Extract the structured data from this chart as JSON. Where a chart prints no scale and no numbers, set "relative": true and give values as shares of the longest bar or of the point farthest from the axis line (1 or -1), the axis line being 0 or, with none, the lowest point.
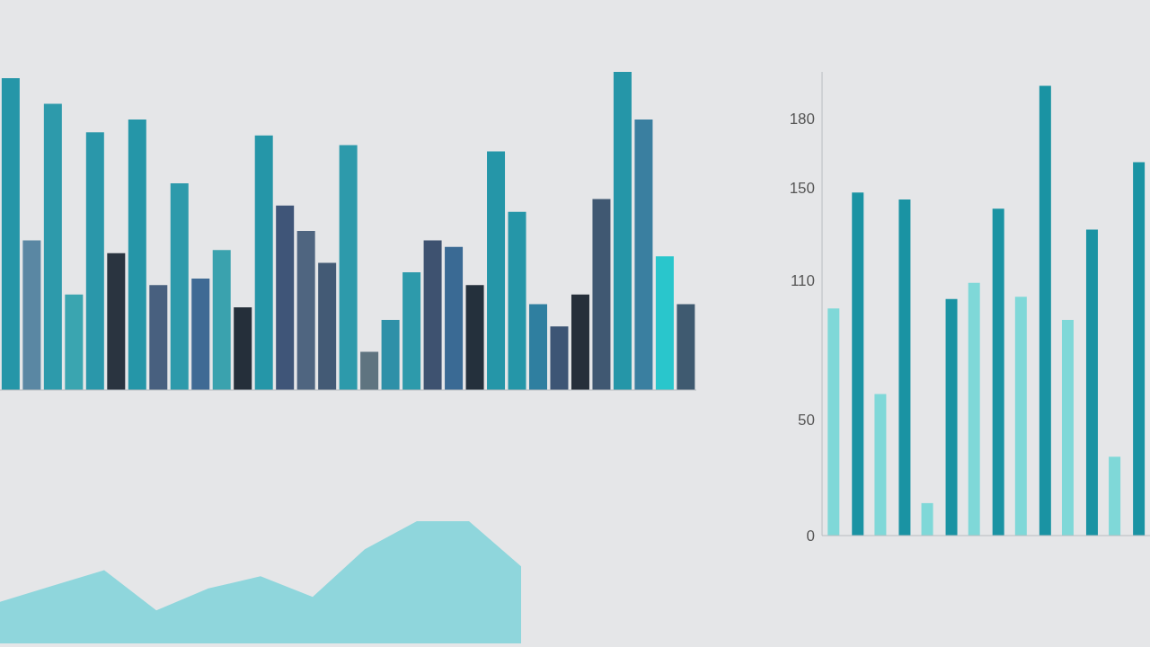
{
  "chart_data": [
    {
      "type": "bar",
      "relative": true,
      "categories": [
        null,
        null,
        null,
        null,
        null,
        null,
        null,
        null,
        null,
        null,
        null,
        null,
        null,
        null,
        null,
        null,
        null,
        null,
        null,
        null,
        null,
        null,
        null,
        null,
        null,
        null,
        null,
        null,
        null,
        null,
        null,
        null,
        null
      ],
      "values": [
        0.98,
        0.47,
        0.9,
        0.3,
        0.81,
        0.43,
        0.85,
        0.33,
        0.65,
        0.35,
        0.44,
        0.26,
        0.8,
        0.58,
        0.5,
        0.4,
        0.77,
        0.12,
        0.22,
        0.37,
        0.47,
        0.45,
        0.33,
        0.75,
        0.56,
        0.27,
        0.2,
        0.3,
        0.6,
        1,
        0.85,
        0.42,
        0.27
      ],
      "colors": [
        "#2596a8",
        "#5a87a3",
        "#2d9aab",
        "#3aa5b0",
        "#2a97aa",
        "#2a3440",
        "#2596a8",
        "#48607f",
        "#2d9aab",
        "#3f6a94",
        "#3aa2ae",
        "#252f3a",
        "#2596a8",
        "#3f5578",
        "#4f6580",
        "#435a75",
        "#2d9aab",
        "#5f7480",
        "#2e90a8",
        "#2d9aab",
        "#3e5270",
        "#3a6a94",
        "#24303c",
        "#2596a8",
        "#2596a8",
        "#2f7fa0",
        "#3d5575",
        "#262f3a",
        "#405872",
        "#2596a8",
        "#3a7fa0",
        "#29c6cc",
        "#3f5a70"
      ]
    },
    {
      "type": "bar",
      "categories": [
        null,
        null,
        null,
        null,
        null,
        null,
        null
      ],
      "ylim": [
        0,
        200
      ],
      "yticks": [
        0,
        50,
        110,
        150,
        180
      ],
      "series": [
        {
          "color": "#7fd8d8",
          "values": [
            98,
            61,
            14,
            109,
            103,
            93,
            34
          ]
        },
        {
          "color": "#1a93a3",
          "values": [
            148,
            145,
            102,
            141,
            194,
            132,
            161
          ]
        }
      ]
    },
    {
      "type": "area",
      "relative": true,
      "color": "#8fd6dc",
      "categories": [
        null,
        null,
        null,
        null,
        null,
        null,
        null,
        null,
        null,
        null,
        null
      ],
      "values": [
        0.34,
        0.47,
        0.6,
        0.27,
        0.45,
        0.55,
        0.38,
        0.77,
        1,
        1,
        0.63
      ]
    }
  ]
}
